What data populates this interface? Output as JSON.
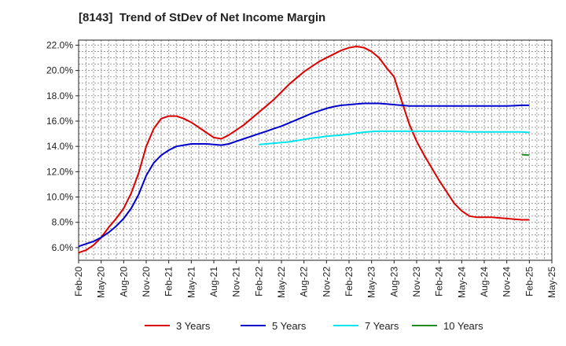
{
  "chart_data": {
    "type": "line",
    "title": "[8143]  Trend of StDev of Net Income Margin",
    "xlabel": "",
    "ylabel": "",
    "x_ticks": [
      "Feb-20",
      "May-20",
      "Aug-20",
      "Nov-20",
      "Feb-21",
      "May-21",
      "Aug-21",
      "Nov-21",
      "Feb-22",
      "May-22",
      "Aug-22",
      "Nov-22",
      "Feb-23",
      "May-23",
      "Aug-23",
      "Nov-23",
      "Feb-24",
      "May-24",
      "Aug-24",
      "Nov-24",
      "Feb-25",
      "May-25"
    ],
    "y_ticks": [
      "6.0%",
      "8.0%",
      "10.0%",
      "12.0%",
      "14.0%",
      "16.0%",
      "18.0%",
      "20.0%",
      "22.0%"
    ],
    "ylim": [
      5.0,
      22.4
    ],
    "xlim": [
      "Feb-20",
      "May-25"
    ],
    "grid": true,
    "legend_position": "bottom",
    "series": [
      {
        "name": "3 Years",
        "color": "#dd0000",
        "x": [
          "Feb-20",
          "Mar-20",
          "Apr-20",
          "May-20",
          "Jun-20",
          "Jul-20",
          "Aug-20",
          "Sep-20",
          "Oct-20",
          "Nov-20",
          "Dec-20",
          "Jan-21",
          "Feb-21",
          "Mar-21",
          "Apr-21",
          "May-21",
          "Jun-21",
          "Jul-21",
          "Aug-21",
          "Sep-21",
          "Oct-21",
          "Nov-21",
          "Dec-21",
          "Jan-22",
          "Feb-22",
          "Mar-22",
          "Apr-22",
          "May-22",
          "Jun-22",
          "Jul-22",
          "Aug-22",
          "Sep-22",
          "Oct-22",
          "Nov-22",
          "Dec-22",
          "Jan-23",
          "Feb-23",
          "Mar-23",
          "Apr-23",
          "May-23",
          "Jun-23",
          "Jul-23",
          "Aug-23",
          "Sep-23",
          "Oct-23",
          "Nov-23",
          "Dec-23",
          "Jan-24",
          "Feb-24",
          "Mar-24",
          "Apr-24",
          "May-24",
          "Jun-24",
          "Jul-24",
          "Aug-24",
          "Sep-24",
          "Oct-24",
          "Nov-24",
          "Dec-24",
          "Jan-25",
          "Feb-25"
        ],
        "values": [
          5.6,
          5.8,
          6.2,
          6.8,
          7.6,
          8.3,
          9.1,
          10.3,
          11.9,
          14.0,
          15.4,
          16.2,
          16.4,
          16.4,
          16.2,
          15.9,
          15.5,
          15.1,
          14.7,
          14.6,
          14.9,
          15.3,
          15.7,
          16.2,
          16.7,
          17.2,
          17.7,
          18.3,
          18.9,
          19.4,
          19.9,
          20.3,
          20.7,
          21.0,
          21.3,
          21.6,
          21.8,
          21.9,
          21.8,
          21.5,
          21.0,
          20.2,
          19.5,
          17.6,
          15.8,
          14.4,
          13.3,
          12.3,
          11.3,
          10.4,
          9.5,
          8.9,
          8.5,
          8.4,
          8.4,
          8.4,
          8.35,
          8.3,
          8.25,
          8.2,
          8.2
        ]
      },
      {
        "name": "5 Years",
        "color": "#0000cc",
        "x": [
          "Feb-20",
          "Mar-20",
          "Apr-20",
          "May-20",
          "Jun-20",
          "Jul-20",
          "Aug-20",
          "Sep-20",
          "Oct-20",
          "Nov-20",
          "Dec-20",
          "Jan-21",
          "Feb-21",
          "Mar-21",
          "Apr-21",
          "May-21",
          "Jun-21",
          "Jul-21",
          "Aug-21",
          "Sep-21",
          "Oct-21",
          "Nov-21",
          "Dec-21",
          "Jan-22",
          "Feb-22",
          "Mar-22",
          "Apr-22",
          "May-22",
          "Jun-22",
          "Jul-22",
          "Aug-22",
          "Sep-22",
          "Oct-22",
          "Nov-22",
          "Dec-22",
          "Jan-23",
          "Feb-23",
          "Mar-23",
          "Apr-23",
          "May-23",
          "Jun-23",
          "Jul-23",
          "Aug-23",
          "Sep-23",
          "Oct-23",
          "Nov-23",
          "Dec-23",
          "Jan-24",
          "Feb-24",
          "Mar-24",
          "Apr-24",
          "May-24",
          "Jun-24",
          "Jul-24",
          "Aug-24",
          "Sep-24",
          "Oct-24",
          "Nov-24",
          "Dec-24",
          "Jan-25",
          "Feb-25"
        ],
        "values": [
          6.1,
          6.3,
          6.5,
          6.8,
          7.2,
          7.7,
          8.3,
          9.1,
          10.2,
          11.7,
          12.7,
          13.3,
          13.7,
          14.0,
          14.1,
          14.2,
          14.2,
          14.2,
          14.15,
          14.1,
          14.2,
          14.4,
          14.6,
          14.8,
          15.0,
          15.2,
          15.4,
          15.6,
          15.85,
          16.1,
          16.35,
          16.6,
          16.8,
          17.0,
          17.15,
          17.25,
          17.3,
          17.35,
          17.4,
          17.4,
          17.4,
          17.35,
          17.3,
          17.25,
          17.2,
          17.2,
          17.2,
          17.2,
          17.2,
          17.2,
          17.2,
          17.2,
          17.2,
          17.2,
          17.2,
          17.2,
          17.2,
          17.2,
          17.22,
          17.25,
          17.25
        ]
      },
      {
        "name": "7 Years",
        "color": "#00e5ee",
        "x": [
          "Feb-22",
          "Mar-22",
          "Apr-22",
          "May-22",
          "Jun-22",
          "Jul-22",
          "Aug-22",
          "Sep-22",
          "Oct-22",
          "Nov-22",
          "Dec-22",
          "Jan-23",
          "Feb-23",
          "Mar-23",
          "Apr-23",
          "May-23",
          "Jun-23",
          "Jul-23",
          "Aug-23",
          "Sep-23",
          "Oct-23",
          "Nov-23",
          "Dec-23",
          "Jan-24",
          "Feb-24",
          "Mar-24",
          "Apr-24",
          "May-24",
          "Jun-24",
          "Jul-24",
          "Aug-24",
          "Sep-24",
          "Oct-24",
          "Nov-24",
          "Dec-24",
          "Jan-25",
          "Feb-25"
        ],
        "values": [
          14.15,
          14.2,
          14.25,
          14.3,
          14.35,
          14.45,
          14.55,
          14.65,
          14.72,
          14.8,
          14.85,
          14.9,
          14.97,
          15.05,
          15.12,
          15.18,
          15.2,
          15.2,
          15.2,
          15.2,
          15.2,
          15.2,
          15.2,
          15.2,
          15.2,
          15.2,
          15.2,
          15.18,
          15.15,
          15.15,
          15.15,
          15.15,
          15.15,
          15.15,
          15.15,
          15.15,
          15.1
        ]
      },
      {
        "name": "10 Years",
        "color": "#228b22",
        "x": [
          "Jan-25",
          "Feb-25"
        ],
        "values": [
          13.35,
          13.3
        ]
      }
    ]
  }
}
